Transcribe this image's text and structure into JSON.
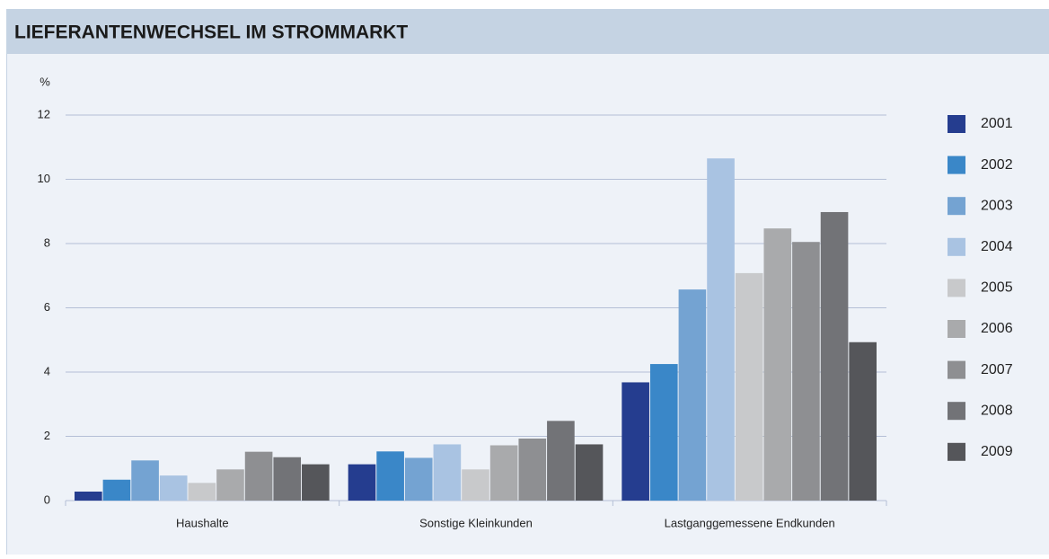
{
  "chart_data": {
    "type": "bar",
    "title": "LIEFERANTENWECHSEL IM STROMMARKT",
    "y_label": "%",
    "categories": [
      "Haushalte",
      "Sonstige Kleinkunden",
      "Lastganggemessene Endkunden"
    ],
    "series": [
      {
        "name": "2001",
        "color": "#253d8f",
        "values": [
          0.28,
          1.13,
          3.68
        ]
      },
      {
        "name": "2002",
        "color": "#3a87c8",
        "values": [
          0.65,
          1.53,
          4.25
        ]
      },
      {
        "name": "2003",
        "color": "#74a3d2",
        "values": [
          1.25,
          1.33,
          6.57
        ]
      },
      {
        "name": "2004",
        "color": "#a9c3e2",
        "values": [
          0.78,
          1.75,
          10.65
        ]
      },
      {
        "name": "2005",
        "color": "#c8c9cb",
        "values": [
          0.55,
          0.97,
          7.08
        ]
      },
      {
        "name": "2006",
        "color": "#a9aaac",
        "values": [
          0.97,
          1.72,
          8.47
        ]
      },
      {
        "name": "2007",
        "color": "#8e8f92",
        "values": [
          1.52,
          1.93,
          8.05
        ]
      },
      {
        "name": "2008",
        "color": "#727377",
        "values": [
          1.35,
          2.48,
          8.98
        ]
      },
      {
        "name": "2009",
        "color": "#55565a",
        "values": [
          1.13,
          1.75,
          4.93
        ]
      }
    ],
    "ylim": [
      0,
      12
    ],
    "yticks": [
      0,
      2,
      4,
      6,
      8,
      10,
      12
    ],
    "grid": true,
    "legend": "right"
  }
}
